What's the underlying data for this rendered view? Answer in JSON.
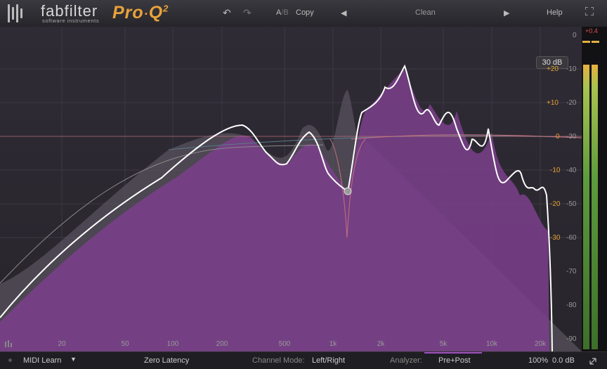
{
  "brand": {
    "name": "fabfilter",
    "subtitle": "software instruments",
    "product": "Pro",
    "product_sep": "·",
    "product_q": "Q",
    "product_version": "2"
  },
  "toolbar": {
    "undo_icon": "undo-icon",
    "redo_icon": "redo-icon",
    "ab_a": "A",
    "ab_b": "B",
    "copy_label": "Copy",
    "prev_icon": "triangle-left-icon",
    "preset_name": "Clean",
    "next_icon": "triangle-right-icon",
    "help_label": "Help",
    "fullscreen_icon": "fullscreen-icon"
  },
  "display": {
    "range_badge": "30 dB",
    "frequency_labels": [
      "20",
      "50",
      "100",
      "200",
      "500",
      "1k",
      "2k",
      "5k",
      "10k",
      "20k"
    ],
    "gain_labels": [
      "+20",
      "+10",
      "0",
      "-10",
      "-20",
      "-30"
    ],
    "spectrum_labels": [
      "0",
      "-10",
      "-20",
      "-30",
      "-40",
      "-50",
      "-60",
      "-70",
      "-80",
      "-90"
    ],
    "meter_peak": "+0.4",
    "colors": {
      "eq_fill": "#7b3f8c",
      "eq_curve": "#ffffff",
      "gain_labels": "#e0a030",
      "zero_line": "#c0707a"
    }
  },
  "bottom": {
    "midi_learn": "MIDI Learn",
    "latency": "Zero Latency",
    "channel_mode_label": "Channel Mode:",
    "channel_mode_value": "Left/Right",
    "analyzer_label": "Analyzer:",
    "analyzer_value": "Pre+Post",
    "zoom": "100%",
    "output_gain": "0.0 dB"
  }
}
